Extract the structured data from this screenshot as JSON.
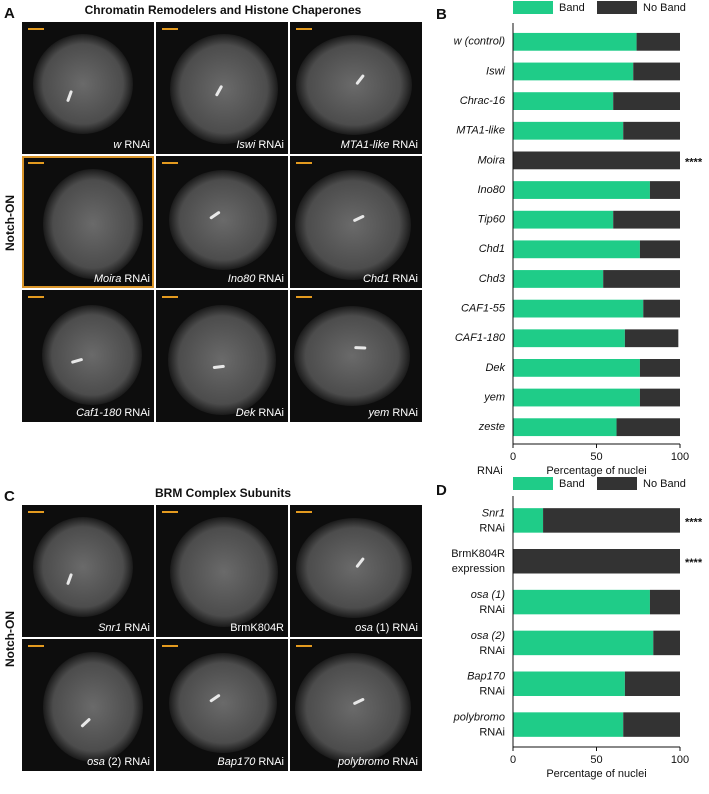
{
  "panels": [
    {
      "letter": "A",
      "title": "Chromatin Remodelers and Histone Chaperones",
      "row_label": "Notch-ON",
      "images": [
        {
          "gene": "w",
          "suffix": "RNAi"
        },
        {
          "gene": "Iswi",
          "suffix": "RNAi"
        },
        {
          "gene": "MTA1-like",
          "suffix": "RNAi"
        },
        {
          "gene": "Moira",
          "suffix": "RNAi"
        },
        {
          "gene": "Ino80",
          "suffix": "RNAi"
        },
        {
          "gene": "Chd1",
          "suffix": "RNAi"
        },
        {
          "gene": "Caf1-180",
          "suffix": "RNAi"
        },
        {
          "gene": "Dek",
          "suffix": "RNAi"
        },
        {
          "gene": "yem",
          "suffix": "RNAi"
        }
      ]
    },
    {
      "letter": "C",
      "title": "BRM Complex Subunits",
      "row_label": "Notch-ON",
      "images": [
        {
          "gene": "Snr1",
          "suffix": "RNAi"
        },
        {
          "text": "BrmK804R"
        },
        {
          "gene": "osa",
          "suffix": "(1) RNAi"
        },
        {
          "gene": "osa",
          "suffix": "(2) RNAi"
        },
        {
          "gene": "Bap170",
          "suffix": "RNAi"
        },
        {
          "gene": "polybromo",
          "suffix": "RNAi"
        }
      ]
    }
  ],
  "chart_data": [
    {
      "type": "stacked-bar",
      "panel_label": "B",
      "xlabel": "Percentage of nuclei",
      "ylabel": "RNAi",
      "categories": [
        "w (control)",
        "Iswi",
        "Chrac-16",
        "MTA1-like",
        "Moira",
        "Ino80",
        "Tip60",
        "Chd1",
        "Chd3",
        "CAF1-55",
        "CAF1-180",
        "Dek",
        "yem",
        "zeste"
      ],
      "series": [
        {
          "name": "Band",
          "color": "#1fcc88",
          "values": [
            74,
            72,
            60,
            66,
            0,
            82,
            60,
            76,
            54,
            78,
            67,
            76,
            76,
            62
          ]
        },
        {
          "name": "No Band",
          "color": "#333333",
          "values": [
            26,
            28,
            40,
            34,
            100,
            18,
            40,
            24,
            46,
            22,
            32,
            24,
            24,
            38
          ]
        }
      ],
      "xlim": [
        0,
        100
      ],
      "xticks": [
        0,
        50,
        100
      ],
      "annotations": [
        {
          "category": 4,
          "text": "****"
        }
      ]
    },
    {
      "type": "stacked-bar",
      "panel_label": "D",
      "xlabel": "Percentage of nuclei",
      "categories": [
        [
          "Snr1",
          "RNAi"
        ],
        [
          "BrmK804R",
          "expression"
        ],
        [
          "osa (1)",
          "RNAi"
        ],
        [
          "osa (2)",
          "RNAi"
        ],
        [
          "Bap170",
          "RNAi"
        ],
        [
          "polybromo",
          "RNAi"
        ]
      ],
      "italic_first_line": [
        true,
        false,
        true,
        true,
        true,
        true
      ],
      "series": [
        {
          "name": "Band",
          "color": "#1fcc88",
          "values": [
            18,
            0,
            82,
            84,
            67,
            66
          ]
        },
        {
          "name": "No Band",
          "color": "#333333",
          "values": [
            82,
            100,
            18,
            16,
            33,
            34
          ]
        }
      ],
      "xlim": [
        0,
        100
      ],
      "xticks": [
        0,
        50,
        100
      ],
      "annotations": [
        {
          "category": 0,
          "text": "****"
        },
        {
          "category": 1,
          "text": "****"
        }
      ]
    }
  ]
}
